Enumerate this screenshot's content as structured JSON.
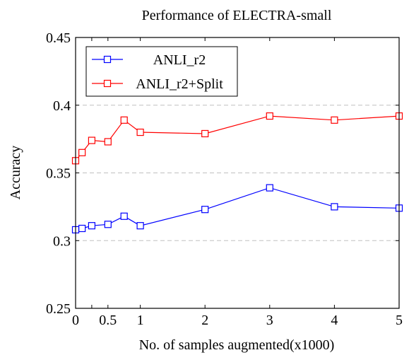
{
  "chart_data": {
    "type": "line",
    "title": "Performance of ELECTRA-small",
    "xlabel": "No. of samples augmented(x1000)",
    "ylabel": "Accuracy",
    "xlim": [
      0,
      5
    ],
    "ylim": [
      0.25,
      0.45
    ],
    "xticks": [
      0,
      0.25,
      0.5,
      1,
      2,
      3,
      4,
      5
    ],
    "xtick_labels": [
      "0",
      "",
      "0.5",
      "1",
      "2",
      "3",
      "4",
      "5"
    ],
    "yticks": [
      0.25,
      0.3,
      0.35,
      0.4,
      0.45
    ],
    "ytick_labels": [
      "0.25",
      "0.3",
      "0.35",
      "0.4",
      "0.45"
    ],
    "grid": "horizontal-dashed",
    "legend_position": "top-left",
    "series": [
      {
        "name": "ANLI_r2",
        "color": "#0000ff",
        "marker": "square",
        "x": [
          0,
          0.1,
          0.25,
          0.5,
          0.75,
          1,
          2,
          3,
          4,
          5
        ],
        "y": [
          0.308,
          0.309,
          0.311,
          0.312,
          0.318,
          0.311,
          0.323,
          0.339,
          0.325,
          0.324
        ]
      },
      {
        "name": "ANLI_r2+Split",
        "color": "#ff0000",
        "marker": "square",
        "x": [
          0,
          0.1,
          0.25,
          0.5,
          0.75,
          1,
          2,
          3,
          4,
          5
        ],
        "y": [
          0.359,
          0.365,
          0.374,
          0.373,
          0.389,
          0.38,
          0.379,
          0.392,
          0.389,
          0.392
        ]
      }
    ]
  }
}
